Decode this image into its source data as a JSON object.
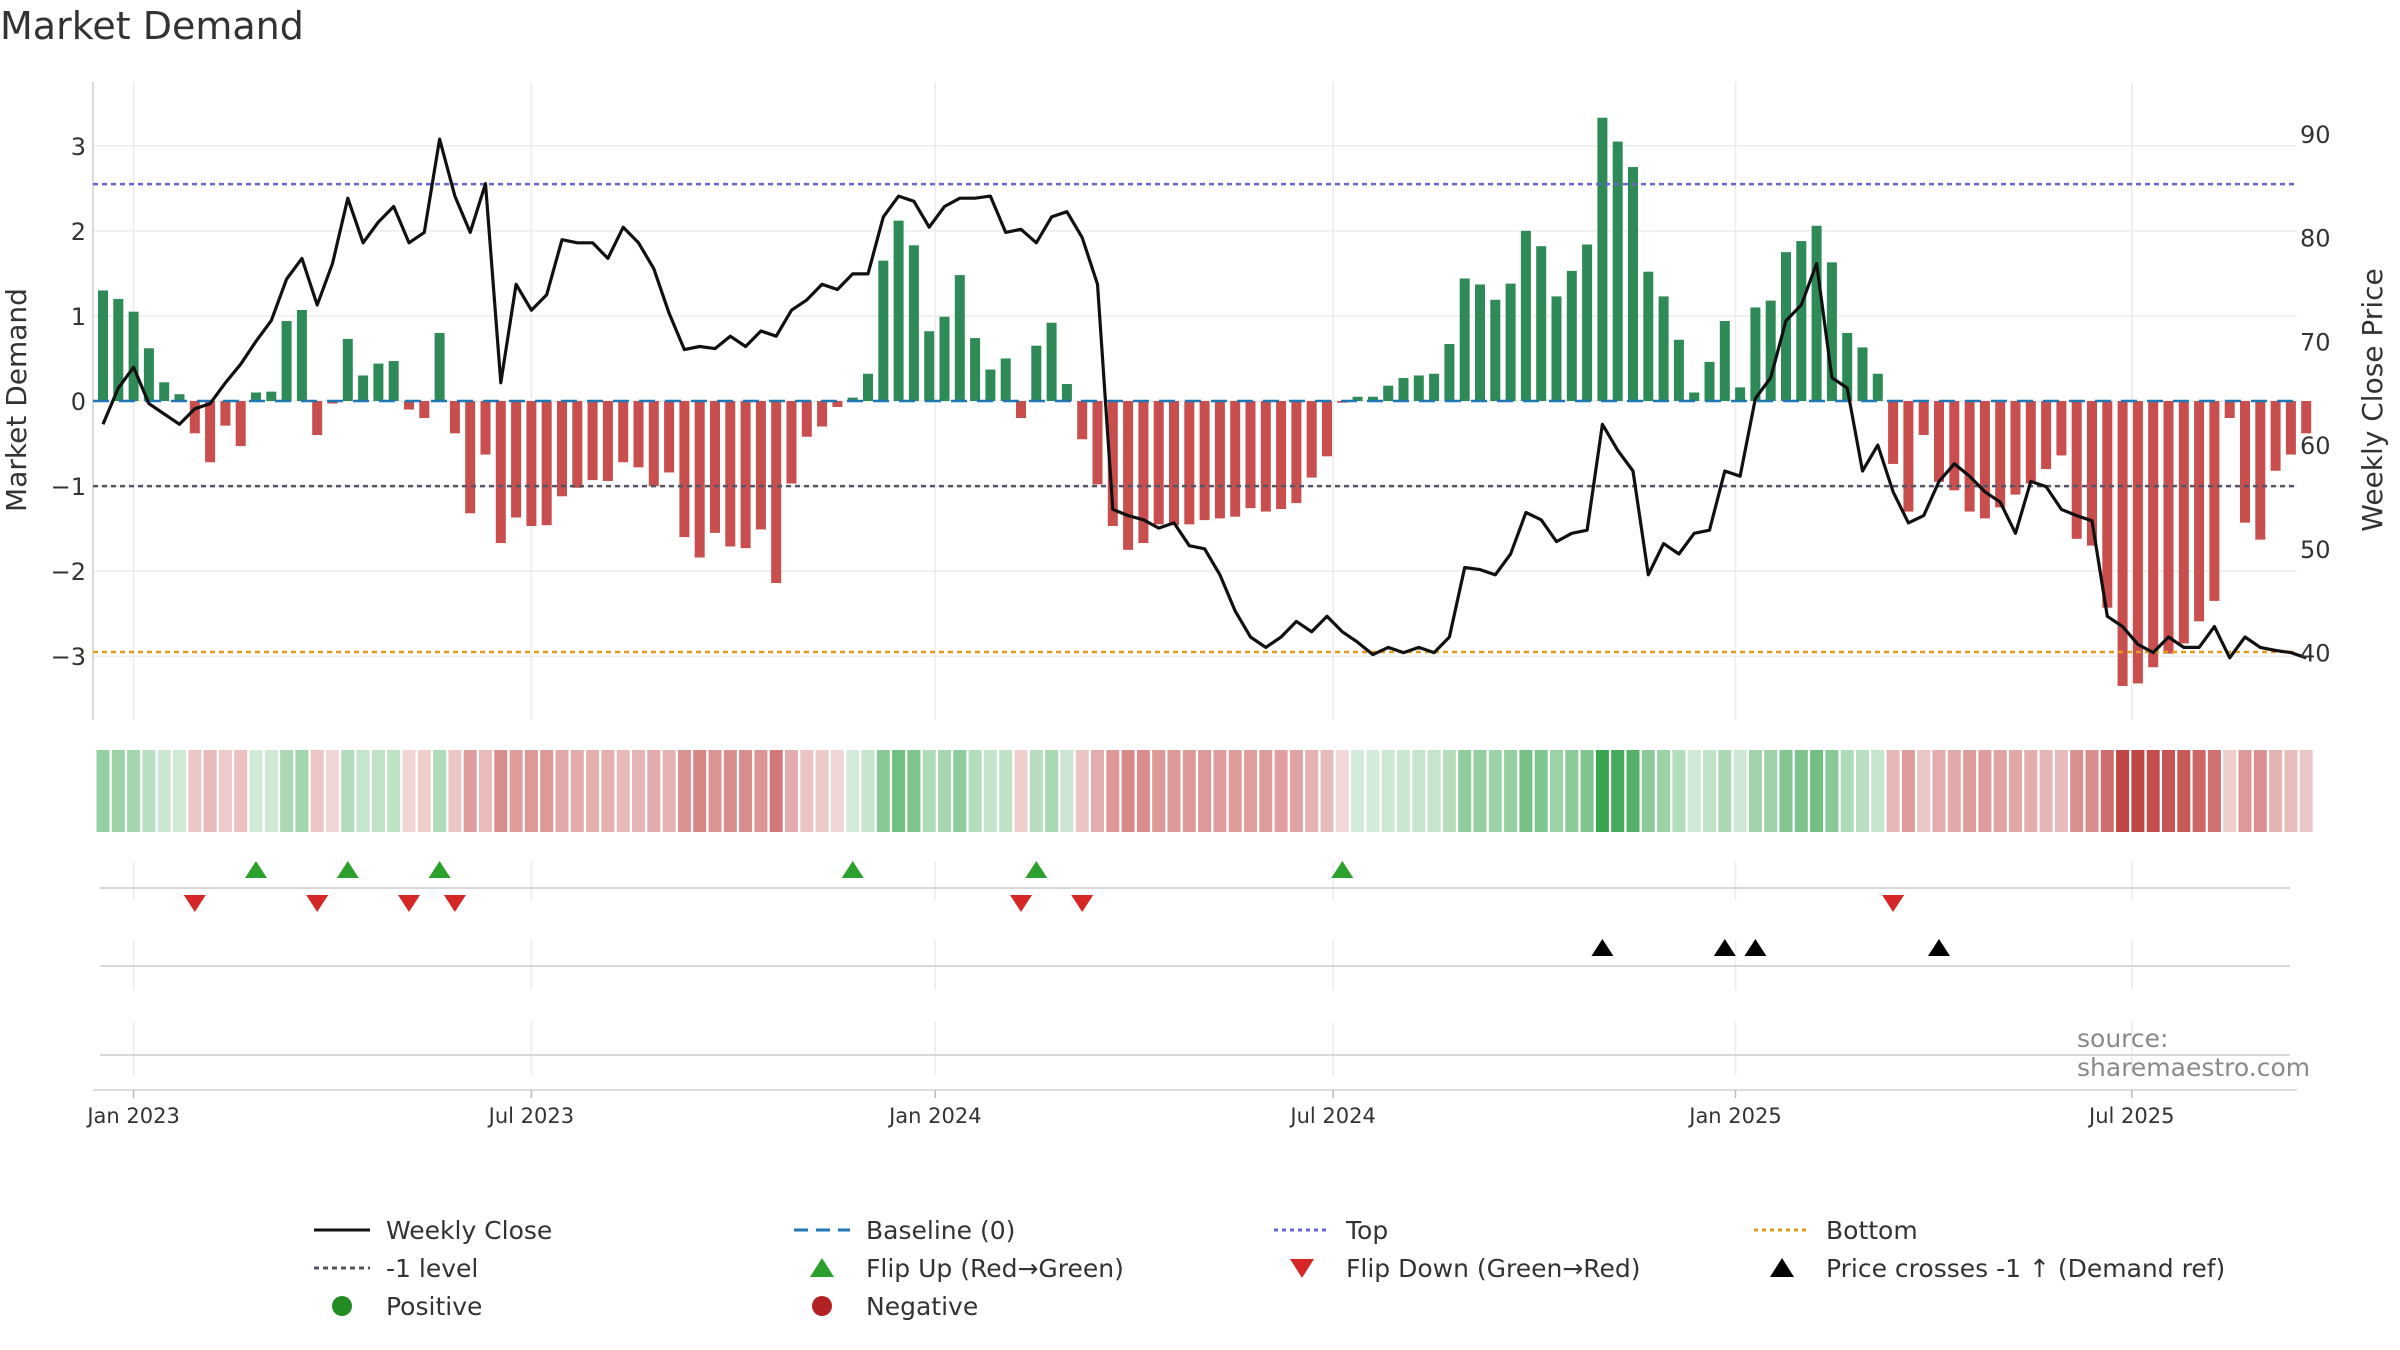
{
  "chart_data": {
    "type": "bar",
    "title": "Market Demand",
    "ylabel_left": "Market Demand",
    "ylabel_right": "Weekly Close Price",
    "y_left_range": [
      -3.75,
      3.75
    ],
    "y_left_ticks": [
      {
        "value": 3,
        "label": "3"
      },
      {
        "value": 2,
        "label": "2"
      },
      {
        "value": 1,
        "label": "1"
      },
      {
        "value": 0,
        "label": "0"
      },
      {
        "value": -1,
        "label": "−1"
      },
      {
        "value": -2,
        "label": "−2"
      },
      {
        "value": -3,
        "label": "−3"
      }
    ],
    "y_right_range": [
      33.5,
      95.0
    ],
    "y_right_ticks": [
      {
        "value": 90,
        "label": "90"
      },
      {
        "value": 80,
        "label": "80"
      },
      {
        "value": 70,
        "label": "70"
      },
      {
        "value": 60,
        "label": "60"
      },
      {
        "value": 50,
        "label": "50"
      },
      {
        "value": 40,
        "label": "40"
      }
    ],
    "x_start": "2022-12-26",
    "week_count": 145,
    "x_ticks": [
      {
        "week": 2,
        "label": "Jan 2023"
      },
      {
        "week": 28,
        "label": "Jul 2023"
      },
      {
        "week": 54.4,
        "label": "Jan 2024"
      },
      {
        "week": 80.4,
        "label": "Jul 2024"
      },
      {
        "week": 106.7,
        "label": "Jan 2025"
      },
      {
        "week": 132.6,
        "label": "Jul 2025"
      }
    ],
    "levels": {
      "baseline": 0,
      "top": 2.55,
      "minus_one": -1.0,
      "bottom": -2.95
    },
    "demand": [
      1.3,
      1.2,
      1.05,
      0.62,
      0.22,
      0.08,
      -0.38,
      -0.72,
      -0.29,
      -0.53,
      0.1,
      0.11,
      0.94,
      1.07,
      -0.4,
      -0.03,
      0.73,
      0.3,
      0.44,
      0.47,
      -0.1,
      -0.2,
      0.8,
      -0.38,
      -1.32,
      -0.63,
      -1.67,
      -1.37,
      -1.47,
      -1.46,
      -1.12,
      -1.02,
      -0.93,
      -0.94,
      -0.72,
      -0.78,
      -1.0,
      -0.84,
      -1.6,
      -1.84,
      -1.55,
      -1.71,
      -1.73,
      -1.51,
      -2.14,
      -0.97,
      -0.42,
      -0.3,
      -0.07,
      0.04,
      0.32,
      1.65,
      2.12,
      1.83,
      0.82,
      0.99,
      1.48,
      0.74,
      0.37,
      0.5,
      -0.2,
      0.65,
      0.92,
      0.2,
      -0.45,
      -0.98,
      -1.47,
      -1.75,
      -1.67,
      -1.45,
      -1.46,
      -1.45,
      -1.4,
      -1.38,
      -1.36,
      -1.26,
      -1.3,
      -1.27,
      -1.2,
      -0.9,
      -0.65,
      -0.02,
      0.05,
      0.05,
      0.18,
      0.27,
      0.3,
      0.32,
      0.67,
      1.44,
      1.37,
      1.19,
      1.38,
      2.0,
      1.82,
      1.23,
      1.53,
      1.84,
      3.33,
      3.05,
      2.75,
      1.52,
      1.23,
      0.72,
      0.1,
      0.46,
      0.94,
      0.16,
      1.1,
      1.18,
      1.75,
      1.88,
      2.06,
      1.63,
      0.8,
      0.63,
      0.32,
      -0.74,
      -1.3,
      -0.4,
      -0.95,
      -1.05,
      -1.3,
      -1.38,
      -1.25,
      -1.1,
      -0.97,
      -0.8,
      -0.64,
      -1.62,
      -1.7,
      -2.43,
      -3.35,
      -3.32,
      -3.13,
      -2.97,
      -2.85,
      -2.59,
      -2.35,
      -0.2,
      -1.43,
      -1.63,
      -0.82,
      -0.63,
      -0.38
    ],
    "price": [
      62,
      65.5,
      67.5,
      64,
      63,
      62,
      63.5,
      64,
      66,
      67.8,
      70,
      72,
      76,
      78,
      73.5,
      77.5,
      83.8,
      79.5,
      81.5,
      83,
      79.5,
      80.5,
      89.5,
      84,
      80.5,
      85.2,
      66,
      75.5,
      73,
      74.5,
      79.8,
      79.5,
      79.5,
      78,
      81,
      79.5,
      77,
      72.7,
      69.2,
      69.5,
      69.3,
      70.5,
      69.5,
      71,
      70.5,
      73,
      74,
      75.5,
      75,
      76.5,
      76.5,
      82,
      84,
      83.5,
      81,
      83,
      83.8,
      83.8,
      84,
      80.5,
      80.8,
      79.5,
      82,
      82.5,
      80,
      75.5,
      53.8,
      53.2,
      52.8,
      52,
      52.5,
      50.3,
      50,
      47.5,
      44,
      41.5,
      40.5,
      41.5,
      43,
      42,
      43.5,
      42,
      41,
      39.8,
      40.5,
      40,
      40.5,
      40,
      41.5,
      48.2,
      48,
      47.5,
      49.5,
      53.5,
      52.8,
      50.7,
      51.5,
      51.8,
      62,
      59.5,
      57.5,
      47.5,
      50.5,
      49.5,
      51.5,
      51.8,
      57.5,
      57,
      64.5,
      66.5,
      72,
      73.5,
      77.5,
      66.5,
      65.5,
      57.5,
      60,
      55.5,
      52.5,
      53.2,
      56.5,
      58.2,
      57,
      55.5,
      54.5,
      51.5,
      56.5,
      56,
      53.8,
      53.2,
      52.7,
      43.5,
      42.5,
      40.8,
      40,
      41.5,
      40.5,
      40.5,
      42.5,
      39.5,
      41.5,
      40.5,
      40.2,
      40.0,
      39.5
    ],
    "heat_strip": "demand-shaded weekly strip",
    "flip_up_weeks": [
      10,
      16,
      22,
      49,
      61,
      81
    ],
    "flip_down_weeks": [
      6,
      14,
      20,
      23,
      60,
      64,
      117
    ],
    "price_cross_weeks": [
      98,
      106,
      108,
      120
    ],
    "colors": {
      "positive": "#2e8b57",
      "negative": "#c94f4f",
      "price": "#111111",
      "baseline": "#1f77b4",
      "top": "#6666cc",
      "bottom": "#e69b20",
      "minus_one": "#555566",
      "flip_up": "#2ca02c",
      "flip_down": "#d62728",
      "cross": "#000000"
    },
    "legend": [
      {
        "key": "weekly_close",
        "label": "Weekly Close"
      },
      {
        "key": "baseline",
        "label": "Baseline (0)"
      },
      {
        "key": "top",
        "label": "Top"
      },
      {
        "key": "bottom",
        "label": "Bottom"
      },
      {
        "key": "minus_one",
        "label": "-1 level"
      },
      {
        "key": "flip_up",
        "label": "Flip Up (Red→Green)"
      },
      {
        "key": "flip_down",
        "label": "Flip Down (Green→Red)"
      },
      {
        "key": "cross",
        "label": "Price crosses -1 ↑ (Demand ref)"
      },
      {
        "key": "positive",
        "label": "Positive"
      },
      {
        "key": "negative",
        "label": "Negative"
      }
    ]
  },
  "source": "source: sharemaestro.com"
}
